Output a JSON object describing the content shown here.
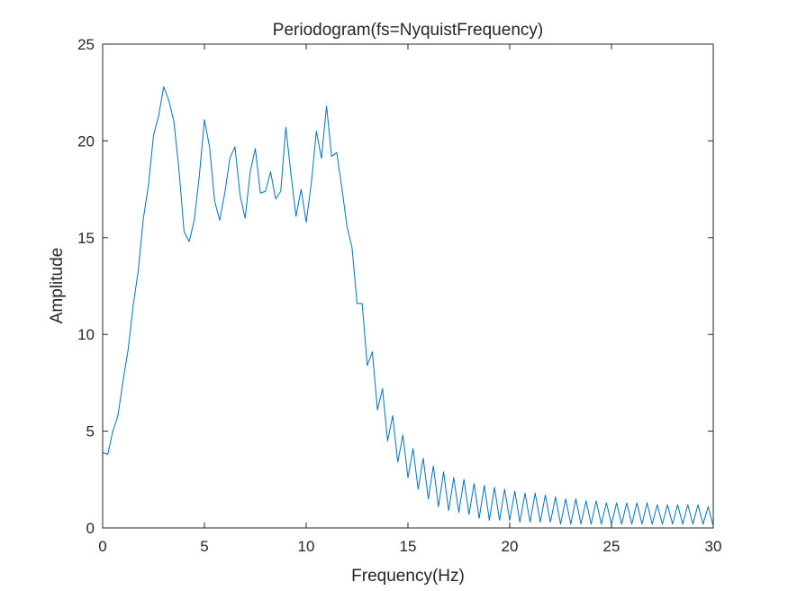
{
  "chart_data": {
    "type": "line",
    "title": "Periodogram(fs=NyquistFrequency)",
    "xlabel": "Frequency(Hz)",
    "ylabel": "Amplitude",
    "xlim": [
      0,
      30
    ],
    "ylim": [
      0,
      25
    ],
    "xticks": [
      "0",
      "5",
      "10",
      "15",
      "20",
      "25",
      "30"
    ],
    "yticks": [
      "0",
      "5",
      "10",
      "15",
      "20",
      "25"
    ],
    "grid": false,
    "legend": "none",
    "line_color": "#0072BD",
    "series": [
      {
        "x": [
          0,
          0.25,
          0.5,
          0.75,
          1.0,
          1.25,
          1.5,
          1.75,
          2.0,
          2.25,
          2.5,
          2.75,
          3.0,
          3.25,
          3.5,
          3.75,
          4.0,
          4.25,
          4.5,
          4.75,
          5.0,
          5.25,
          5.5,
          5.75,
          6.0,
          6.25,
          6.5,
          6.75,
          7.0,
          7.25,
          7.5,
          7.75,
          8.0,
          8.25,
          8.5,
          8.75,
          9.0,
          9.25,
          9.5,
          9.75,
          10.0,
          10.25,
          10.5,
          10.75,
          11.0,
          11.25,
          11.5,
          11.75,
          12.0,
          12.25,
          12.5,
          12.75,
          13.0,
          13.25,
          13.5,
          13.75,
          14.0,
          14.25,
          14.5,
          14.75,
          15.0,
          15.25,
          15.5,
          15.75,
          16.0,
          16.25,
          16.5,
          16.75,
          17.0,
          17.25,
          17.5,
          17.75,
          18.0,
          18.25,
          18.5,
          18.75,
          19.0,
          19.25,
          19.5,
          19.75,
          20.0,
          20.25,
          20.5,
          20.75,
          21.0,
          21.25,
          21.5,
          21.75,
          22.0,
          22.25,
          22.5,
          22.75,
          23.0,
          23.25,
          23.5,
          23.75,
          24.0,
          24.25,
          24.5,
          24.75,
          25.0,
          25.25,
          25.5,
          25.75,
          26.0,
          26.25,
          26.5,
          26.75,
          27.0,
          27.25,
          27.5,
          27.75,
          28.0,
          28.25,
          28.5,
          28.75,
          29.0,
          29.25,
          29.5,
          29.75,
          30.0
        ],
        "y": [
          3.9,
          3.8,
          5.0,
          5.8,
          7.6,
          9.2,
          11.5,
          13.3,
          16.0,
          17.7,
          20.3,
          21.3,
          22.8,
          22.1,
          21.0,
          18.5,
          15.3,
          14.8,
          15.9,
          18.2,
          21.1,
          19.7,
          16.9,
          15.9,
          17.3,
          19.1,
          19.7,
          17.2,
          16.0,
          18.4,
          19.6,
          17.3,
          17.4,
          18.4,
          17.0,
          17.4,
          20.7,
          18.3,
          16.1,
          17.5,
          15.8,
          17.8,
          20.5,
          19.1,
          21.8,
          19.2,
          19.4,
          17.6,
          15.6,
          14.5,
          11.6,
          11.6,
          8.4,
          9.1,
          6.1,
          7.2,
          4.5,
          5.8,
          3.4,
          4.8,
          2.6,
          4.1,
          2.0,
          3.6,
          1.5,
          3.2,
          1.1,
          2.9,
          0.9,
          2.6,
          0.8,
          2.5,
          0.7,
          2.3,
          0.5,
          2.2,
          0.4,
          2.1,
          0.4,
          2.0,
          0.4,
          1.9,
          0.3,
          1.8,
          0.3,
          1.8,
          0.3,
          1.7,
          0.3,
          1.6,
          0.2,
          1.5,
          0.2,
          1.5,
          0.2,
          1.4,
          0.2,
          1.4,
          0.2,
          1.3,
          0.2,
          1.3,
          0.2,
          1.3,
          0.2,
          1.3,
          0.2,
          1.3,
          0.2,
          1.2,
          0.2,
          1.2,
          0.2,
          1.2,
          0.2,
          1.2,
          0.2,
          1.2,
          0.2,
          1.1,
          0.1
        ]
      }
    ]
  }
}
